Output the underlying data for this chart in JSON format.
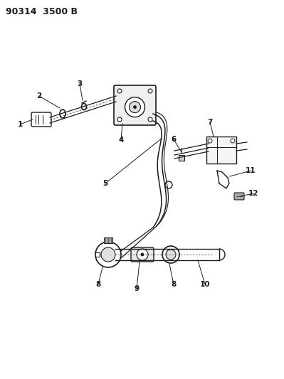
{
  "title": "90314  3500 B",
  "bg_color": "#ffffff",
  "line_color": "#1a1a1a",
  "title_fontsize": 9,
  "label_fontsize": 7.5,
  "figsize": [
    3.99,
    5.33
  ],
  "dpi": 100
}
